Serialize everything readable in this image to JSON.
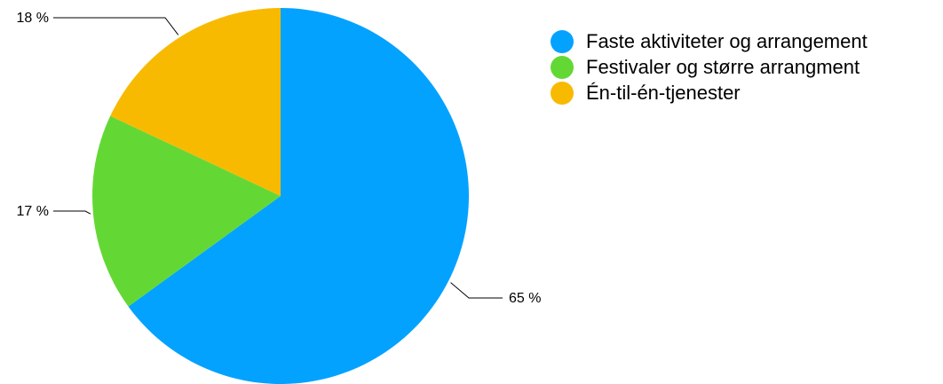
{
  "chart_data": {
    "type": "pie",
    "title": "",
    "legend_position": "top-right",
    "series": [
      {
        "name": "Faste aktiviteter og arrangement",
        "value": 65,
        "label": "65 %",
        "color": "#04A2FF"
      },
      {
        "name": "Festivaler og større arrangment",
        "value": 17,
        "label": "17 %",
        "color": "#63D835"
      },
      {
        "name": "Én-til-én-tjenester",
        "value": 18,
        "label": "18 %",
        "color": "#F8BA00"
      }
    ]
  }
}
